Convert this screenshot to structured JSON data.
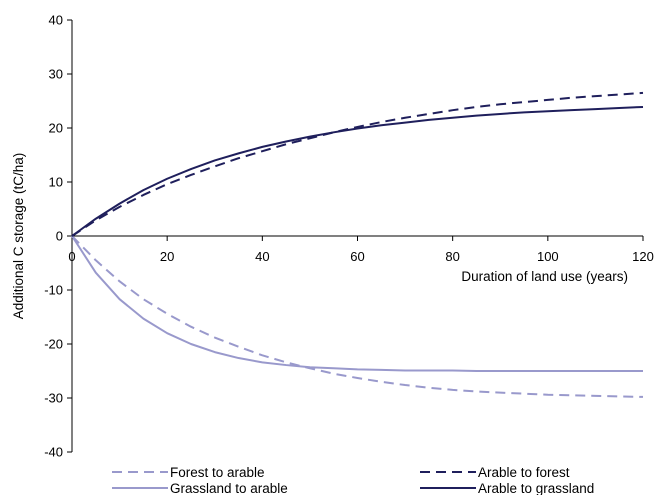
{
  "chart_data": {
    "type": "line",
    "title": "",
    "xlabel": "Duration of land use (years)",
    "ylabel": "Additional C storage (tC/ha)",
    "xlim": [
      0,
      120
    ],
    "ylim": [
      -40,
      40
    ],
    "xticks": [
      0,
      20,
      40,
      60,
      80,
      100,
      120
    ],
    "yticks": [
      -40,
      -30,
      -20,
      -10,
      0,
      10,
      20,
      30,
      40
    ],
    "x_tick_labels": [
      "0",
      "20",
      "40",
      "60",
      "80",
      "100",
      "120"
    ],
    "y_tick_labels": [
      "-40",
      "-30",
      "-20",
      "-10",
      "0",
      "10",
      "20",
      "30",
      "40"
    ],
    "grid": false,
    "legend_position": "bottom",
    "series": [
      {
        "name": "Forest to arable",
        "color": "#9999cc",
        "dash": "dashed",
        "x": [
          0,
          5,
          10,
          15,
          20,
          25,
          30,
          35,
          40,
          45,
          50,
          55,
          60,
          65,
          70,
          75,
          80,
          85,
          90,
          95,
          100,
          105,
          110,
          115,
          120
        ],
        "y": [
          0,
          -4.5,
          -8.4,
          -11.7,
          -14.4,
          -16.8,
          -18.8,
          -20.5,
          -22.1,
          -23.4,
          -24.5,
          -25.5,
          -26.3,
          -27.0,
          -27.6,
          -28.1,
          -28.5,
          -28.8,
          -29.0,
          -29.2,
          -29.4,
          -29.5,
          -29.6,
          -29.7,
          -29.8
        ]
      },
      {
        "name": "Grassland to arable",
        "color": "#9999cc",
        "dash": "solid",
        "x": [
          0,
          5,
          10,
          15,
          20,
          25,
          30,
          35,
          40,
          45,
          50,
          55,
          60,
          65,
          70,
          75,
          80,
          85,
          90,
          95,
          100,
          105,
          110,
          115,
          120
        ],
        "y": [
          0,
          -6.8,
          -11.7,
          -15.3,
          -18.0,
          -20.0,
          -21.5,
          -22.6,
          -23.4,
          -23.9,
          -24.3,
          -24.5,
          -24.7,
          -24.8,
          -24.9,
          -24.9,
          -24.9,
          -25.0,
          -25.0,
          -25.0,
          -25.0,
          -25.0,
          -25.0,
          -25.0,
          -25.0
        ]
      },
      {
        "name": "Arable to forest",
        "color": "#1f1f5c",
        "dash": "dashed",
        "x": [
          0,
          5,
          10,
          15,
          20,
          25,
          30,
          35,
          40,
          45,
          50,
          55,
          60,
          65,
          70,
          75,
          80,
          85,
          90,
          95,
          100,
          105,
          110,
          115,
          120
        ],
        "y": [
          0,
          2.9,
          5.4,
          7.6,
          9.6,
          11.3,
          12.9,
          14.4,
          15.7,
          17.0,
          18.1,
          19.2,
          20.2,
          21.1,
          21.9,
          22.6,
          23.3,
          23.9,
          24.4,
          24.8,
          25.2,
          25.6,
          25.9,
          26.2,
          26.5
        ]
      },
      {
        "name": "Arable to grassland",
        "color": "#1f1f5c",
        "dash": "solid",
        "x": [
          0,
          5,
          10,
          15,
          20,
          25,
          30,
          35,
          40,
          45,
          50,
          55,
          60,
          65,
          70,
          75,
          80,
          85,
          90,
          95,
          100,
          105,
          110,
          115,
          120
        ],
        "y": [
          0,
          3.2,
          6.0,
          8.5,
          10.6,
          12.4,
          14.0,
          15.3,
          16.5,
          17.5,
          18.4,
          19.2,
          19.9,
          20.5,
          21.0,
          21.5,
          21.9,
          22.3,
          22.6,
          22.9,
          23.1,
          23.3,
          23.5,
          23.7,
          23.9
        ]
      }
    ]
  }
}
